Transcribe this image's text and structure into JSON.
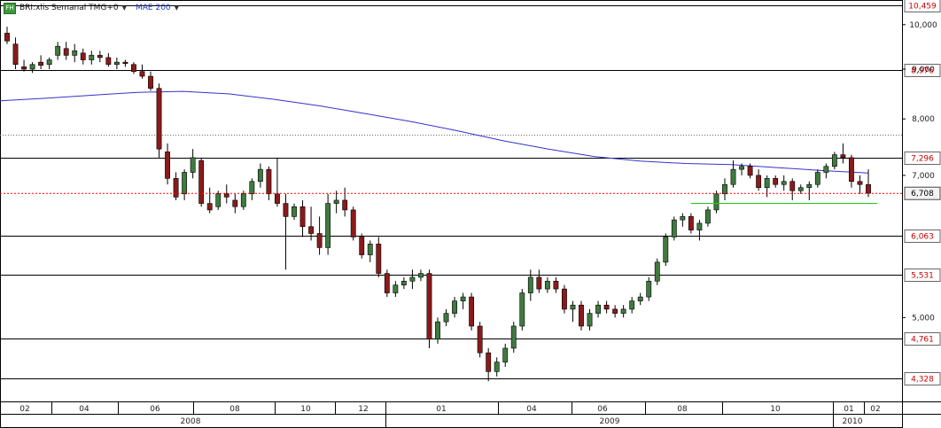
{
  "header": {
    "icon_text": "FH",
    "symbol_label": "BRI:xlis Semanal TMG+0",
    "ma_label": "MAE 200"
  },
  "colors": {
    "up": "#3f7a3f",
    "down": "#8b1a1a",
    "ma": "#3333cc",
    "last_price_line": "#ff0000",
    "support_line": "#22cc22",
    "level_line": "#000000",
    "label_text": "#cc0000"
  },
  "chart_data": {
    "type": "candlestick",
    "title": "BRI:xlis Semanal TMG+0",
    "scale": "log",
    "ylim": [
      4.1,
      10.6
    ],
    "y_ticks": [
      "10,000",
      "9,000",
      "8,000",
      "7,000",
      "5,000"
    ],
    "horizontal_levels": [
      "10,459",
      "8,976",
      "7,296",
      "6,063",
      "5,531",
      "4,761",
      "4,328"
    ],
    "last_price": "6,708",
    "support_level": 6.55,
    "dotted_level": 7.7,
    "x_month_labels": [
      "02",
      "04",
      "06",
      "08",
      "10",
      "12",
      "01",
      "04",
      "06",
      "08",
      "10",
      "01",
      "02"
    ],
    "x_year_labels": [
      "2008",
      "2009",
      "2010"
    ],
    "moving_average": {
      "name": "MAE 200",
      "values": [
        8.35,
        8.4,
        8.46,
        8.52,
        8.54,
        8.49,
        8.38,
        8.25,
        8.1,
        7.95,
        7.78,
        7.6,
        7.45,
        7.32,
        7.24,
        7.2,
        7.18,
        7.13,
        7.08,
        7.04
      ]
    },
    "candles": [
      [
        9.8,
        9.95,
        9.55,
        9.62
      ],
      [
        9.55,
        9.7,
        9.0,
        9.1
      ],
      [
        9.05,
        9.2,
        8.95,
        9.0
      ],
      [
        9.0,
        9.15,
        8.92,
        9.1
      ],
      [
        9.15,
        9.3,
        9.0,
        9.08
      ],
      [
        9.1,
        9.25,
        9.0,
        9.2
      ],
      [
        9.3,
        9.6,
        9.2,
        9.5
      ],
      [
        9.45,
        9.6,
        9.2,
        9.3
      ],
      [
        9.3,
        9.55,
        9.15,
        9.4
      ],
      [
        9.35,
        9.45,
        9.1,
        9.2
      ],
      [
        9.2,
        9.4,
        9.1,
        9.3
      ],
      [
        9.3,
        9.4,
        9.15,
        9.25
      ],
      [
        9.25,
        9.35,
        9.05,
        9.1
      ],
      [
        9.1,
        9.25,
        9.0,
        9.15
      ],
      [
        9.15,
        9.2,
        9.05,
        9.12
      ],
      [
        9.1,
        9.15,
        8.9,
        8.95
      ],
      [
        8.95,
        9.1,
        8.8,
        8.85
      ],
      [
        8.85,
        8.95,
        8.55,
        8.6
      ],
      [
        8.6,
        8.7,
        7.3,
        7.45
      ],
      [
        7.4,
        7.55,
        6.85,
        6.95
      ],
      [
        6.95,
        7.05,
        6.6,
        6.65
      ],
      [
        6.7,
        7.1,
        6.6,
        7.05
      ],
      [
        7.05,
        7.45,
        6.95,
        7.3
      ],
      [
        7.25,
        7.3,
        6.5,
        6.55
      ],
      [
        6.55,
        6.8,
        6.4,
        6.45
      ],
      [
        6.5,
        6.75,
        6.45,
        6.7
      ],
      [
        6.7,
        6.85,
        6.55,
        6.65
      ],
      [
        6.6,
        6.7,
        6.4,
        6.5
      ],
      [
        6.5,
        6.75,
        6.45,
        6.7
      ],
      [
        6.7,
        6.95,
        6.6,
        6.9
      ],
      [
        6.9,
        7.2,
        6.8,
        7.1
      ],
      [
        7.1,
        7.15,
        6.6,
        6.7
      ],
      [
        6.7,
        7.3,
        6.5,
        6.55
      ],
      [
        6.55,
        6.7,
        5.6,
        6.35
      ],
      [
        6.35,
        6.55,
        6.3,
        6.5
      ],
      [
        6.5,
        6.6,
        6.05,
        6.2
      ],
      [
        6.2,
        6.5,
        6.0,
        6.1
      ],
      [
        6.1,
        6.35,
        5.8,
        5.9
      ],
      [
        5.9,
        6.7,
        5.8,
        6.55
      ],
      [
        6.55,
        6.75,
        6.4,
        6.6
      ],
      [
        6.6,
        6.8,
        6.35,
        6.45
      ],
      [
        6.45,
        6.5,
        6.0,
        6.05
      ],
      [
        6.05,
        6.1,
        5.75,
        5.8
      ],
      [
        5.8,
        6.0,
        5.7,
        5.95
      ],
      [
        5.95,
        6.05,
        5.5,
        5.55
      ],
      [
        5.55,
        5.6,
        5.25,
        5.3
      ],
      [
        5.3,
        5.45,
        5.25,
        5.4
      ],
      [
        5.4,
        5.5,
        5.35,
        5.45
      ],
      [
        5.45,
        5.6,
        5.35,
        5.5
      ],
      [
        5.5,
        5.6,
        5.45,
        5.55
      ],
      [
        5.55,
        5.6,
        4.65,
        4.75
      ],
      [
        4.75,
        5.0,
        4.7,
        4.95
      ],
      [
        4.95,
        5.1,
        4.9,
        5.05
      ],
      [
        5.05,
        5.25,
        5.0,
        5.2
      ],
      [
        5.2,
        5.3,
        5.1,
        5.25
      ],
      [
        5.25,
        5.3,
        4.85,
        4.9
      ],
      [
        4.9,
        4.95,
        4.55,
        4.6
      ],
      [
        4.6,
        4.65,
        4.3,
        4.4
      ],
      [
        4.4,
        4.55,
        4.35,
        4.5
      ],
      [
        4.5,
        4.7,
        4.45,
        4.65
      ],
      [
        4.65,
        4.95,
        4.6,
        4.9
      ],
      [
        4.9,
        5.35,
        4.85,
        5.3
      ],
      [
        5.3,
        5.6,
        5.2,
        5.5
      ],
      [
        5.5,
        5.6,
        5.3,
        5.35
      ],
      [
        5.35,
        5.5,
        5.3,
        5.45
      ],
      [
        5.45,
        5.5,
        5.3,
        5.35
      ],
      [
        5.35,
        5.4,
        5.05,
        5.1
      ],
      [
        5.1,
        5.2,
        4.95,
        5.15
      ],
      [
        5.15,
        5.2,
        4.85,
        4.9
      ],
      [
        4.9,
        5.1,
        4.85,
        5.05
      ],
      [
        5.05,
        5.2,
        5.0,
        5.15
      ],
      [
        5.15,
        5.2,
        5.05,
        5.1
      ],
      [
        5.1,
        5.15,
        5.0,
        5.05
      ],
      [
        5.05,
        5.15,
        5.0,
        5.1
      ],
      [
        5.1,
        5.25,
        5.05,
        5.2
      ],
      [
        5.2,
        5.3,
        5.15,
        5.25
      ],
      [
        5.25,
        5.5,
        5.2,
        5.45
      ],
      [
        5.45,
        5.75,
        5.4,
        5.7
      ],
      [
        5.7,
        6.1,
        5.65,
        6.05
      ],
      [
        6.05,
        6.35,
        6.0,
        6.3
      ],
      [
        6.3,
        6.4,
        6.2,
        6.35
      ],
      [
        6.35,
        6.4,
        6.1,
        6.15
      ],
      [
        6.15,
        6.3,
        6.0,
        6.25
      ],
      [
        6.25,
        6.5,
        6.2,
        6.45
      ],
      [
        6.45,
        6.75,
        6.4,
        6.7
      ],
      [
        6.7,
        6.95,
        6.6,
        6.85
      ],
      [
        6.85,
        7.25,
        6.8,
        7.1
      ],
      [
        7.1,
        7.2,
        7.0,
        7.15
      ],
      [
        7.15,
        7.2,
        6.95,
        7.0
      ],
      [
        7.0,
        7.1,
        6.75,
        6.8
      ],
      [
        6.8,
        7.0,
        6.65,
        6.95
      ],
      [
        6.95,
        7.0,
        6.8,
        6.85
      ],
      [
        6.85,
        7.0,
        6.75,
        6.9
      ],
      [
        6.9,
        6.95,
        6.6,
        6.75
      ],
      [
        6.75,
        6.85,
        6.7,
        6.8
      ],
      [
        6.8,
        6.9,
        6.6,
        6.85
      ],
      [
        6.85,
        7.1,
        6.8,
        7.05
      ],
      [
        7.05,
        7.2,
        6.95,
        7.15
      ],
      [
        7.15,
        7.4,
        7.1,
        7.35
      ],
      [
        7.35,
        7.55,
        7.2,
        7.3
      ],
      [
        7.3,
        7.35,
        6.8,
        6.9
      ],
      [
        6.9,
        7.0,
        6.7,
        6.85
      ],
      [
        6.85,
        7.1,
        6.65,
        6.71
      ]
    ]
  }
}
